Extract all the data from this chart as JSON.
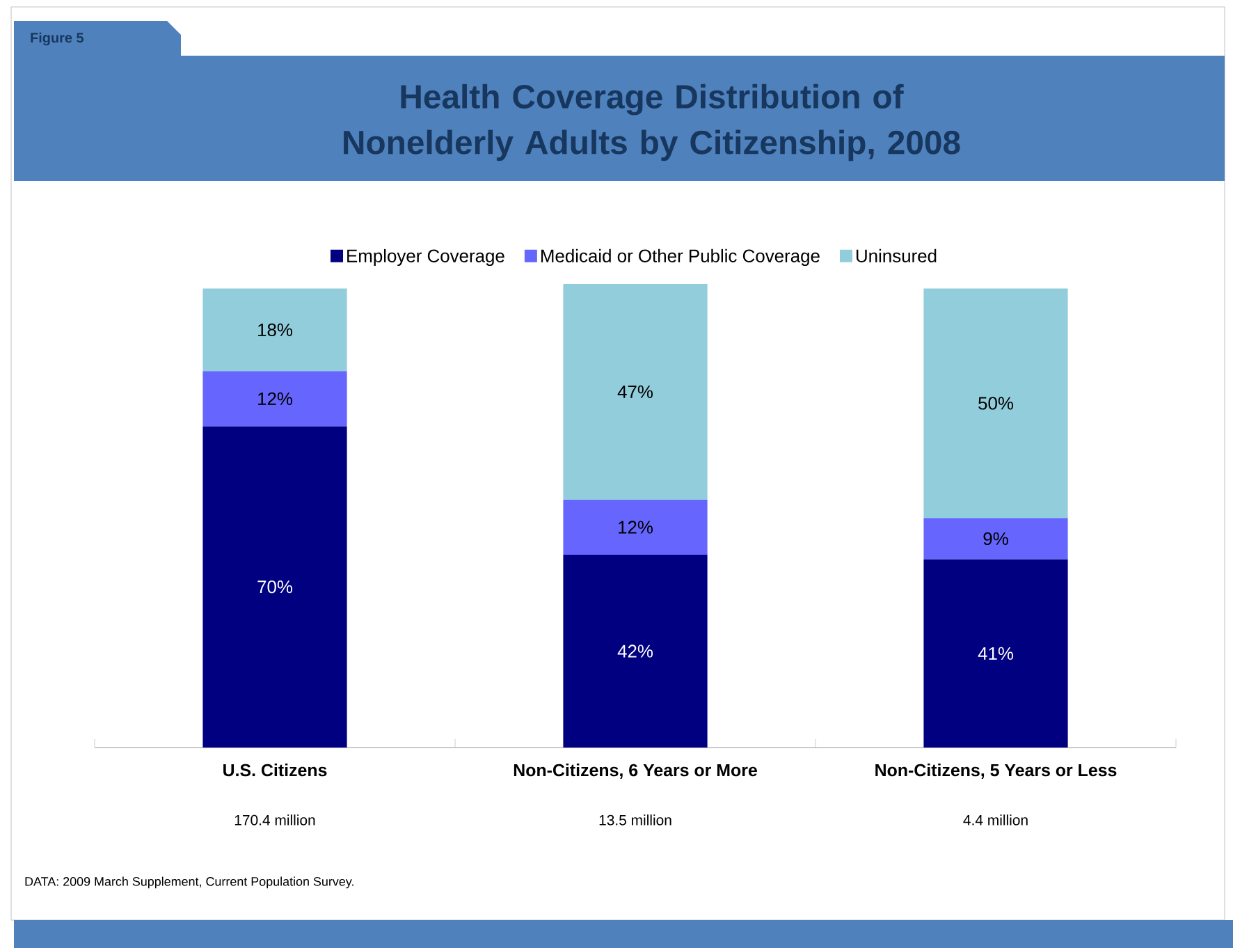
{
  "chart_data": {
    "type": "bar",
    "stacked": true,
    "title": "Health Coverage Distribution of Nonelderly Adults by Citizenship, 2008",
    "categories": [
      "U.S. Citizens",
      "Non-Citizens, 6 Years or More",
      "Non-Citizens, 5 Years or Less"
    ],
    "series": [
      {
        "name": "Employer Coverage",
        "color": "#000080",
        "values": [
          70,
          42,
          41
        ],
        "value_labels": [
          "70%",
          "42%",
          "41%"
        ]
      },
      {
        "name": "Medicaid or Other Public Coverage",
        "color": "#6666ff",
        "values": [
          12,
          12,
          9
        ],
        "value_labels": [
          "12%",
          "12%",
          "9%"
        ]
      },
      {
        "name": "Uninsured",
        "color": "#92cddc",
        "values": [
          18,
          47,
          50
        ],
        "value_labels": [
          "18%",
          "47%",
          "50%"
        ]
      }
    ],
    "legend": "top",
    "annotations": [
      "Figure 5",
      "170.4 million",
      "13.5 million",
      "4.4 million",
      "DATA: 2009 March Supplement, Current Population Survey."
    ]
  }
}
